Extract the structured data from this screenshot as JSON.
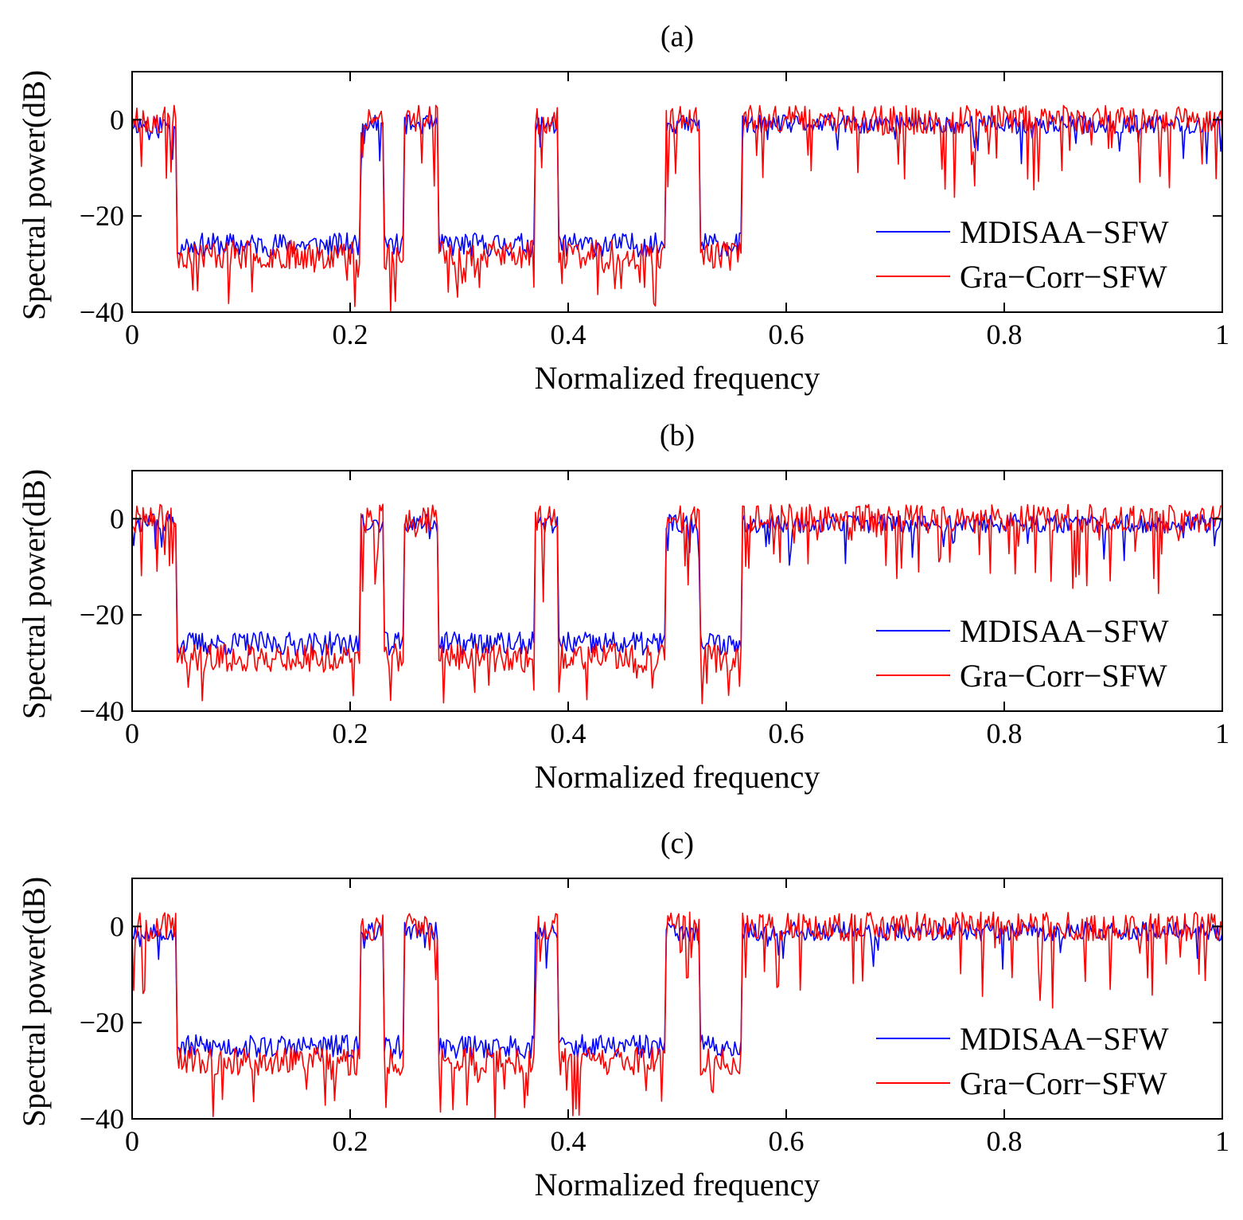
{
  "chart_data": [
    {
      "type": "line",
      "title": "(a)",
      "xlabel": "Normalized frequency",
      "ylabel": "Spectral power(dB)",
      "xlim": [
        0,
        1
      ],
      "ylim": [
        -40,
        10
      ],
      "xticks": [
        "0",
        "0.2",
        "0.4",
        "0.6",
        "0.8",
        "1"
      ],
      "yticks": [
        "−40",
        "−20",
        "0"
      ],
      "grid": false,
      "legend_position": "lower-right",
      "colors": {
        "MDISAA-SFW": "#0000ff",
        "Gra-Corr-SFW": "#ff0000"
      },
      "passbands": [
        [
          0.0,
          0.04
        ],
        [
          0.21,
          0.23
        ],
        [
          0.25,
          0.28
        ],
        [
          0.37,
          0.39
        ],
        [
          0.49,
          0.52
        ],
        [
          0.56,
          1.0
        ]
      ],
      "stopband_level": {
        "MDISAA-SFW": -26,
        "Gra-Corr-SFW": -28
      },
      "series": [
        {
          "name": "MDISAA−SFW",
          "seed": 11
        },
        {
          "name": "Gra−Corr−SFW",
          "seed": 23
        }
      ]
    },
    {
      "type": "line",
      "title": "(b)",
      "xlabel": "Normalized frequency",
      "ylabel": "Spectral power(dB)",
      "xlim": [
        0,
        1
      ],
      "ylim": [
        -40,
        10
      ],
      "xticks": [
        "0",
        "0.2",
        "0.4",
        "0.6",
        "0.8",
        "1"
      ],
      "yticks": [
        "−40",
        "−20",
        "0"
      ],
      "grid": false,
      "legend_position": "lower-right",
      "colors": {
        "MDISAA-SFW": "#0000ff",
        "Gra-Corr-SFW": "#ff0000"
      },
      "passbands": [
        [
          0.0,
          0.04
        ],
        [
          0.21,
          0.23
        ],
        [
          0.25,
          0.28
        ],
        [
          0.37,
          0.39
        ],
        [
          0.49,
          0.52
        ],
        [
          0.56,
          1.0
        ]
      ],
      "stopband_level": {
        "MDISAA-SFW": -26,
        "Gra-Corr-SFW": -29
      },
      "series": [
        {
          "name": "MDISAA−SFW",
          "seed": 37
        },
        {
          "name": "Gra−Corr−SFW",
          "seed": 41
        }
      ]
    },
    {
      "type": "line",
      "title": "(c)",
      "xlabel": "Normalized frequency",
      "ylabel": "Spectral power(dB)",
      "xlim": [
        0,
        1
      ],
      "ylim": [
        -40,
        10
      ],
      "xticks": [
        "0",
        "0.2",
        "0.4",
        "0.6",
        "0.8",
        "1"
      ],
      "yticks": [
        "−40",
        "−20",
        "0"
      ],
      "grid": false,
      "legend_position": "lower-right",
      "colors": {
        "MDISAA-SFW": "#0000ff",
        "Gra-Corr-SFW": "#ff0000"
      },
      "passbands": [
        [
          0.0,
          0.04
        ],
        [
          0.21,
          0.23
        ],
        [
          0.25,
          0.28
        ],
        [
          0.37,
          0.39
        ],
        [
          0.49,
          0.52
        ],
        [
          0.56,
          1.0
        ]
      ],
      "stopband_level": {
        "MDISAA-SFW": -25,
        "Gra-Corr-SFW": -28
      },
      "series": [
        {
          "name": "MDISAA−SFW",
          "seed": 53
        },
        {
          "name": "Gra−Corr−SFW",
          "seed": 67
        }
      ]
    }
  ]
}
